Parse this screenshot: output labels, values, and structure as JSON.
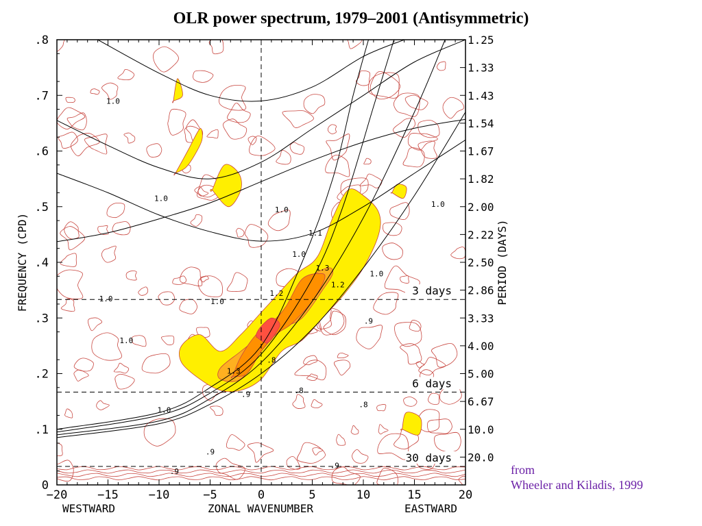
{
  "title": "OLR power spectrum, 1979–2001 (Antisymmetric)",
  "credit": {
    "line1": "from",
    "line2": "Wheeler and Kiladis, 1999"
  },
  "chart_data": {
    "type": "contour",
    "xlabel": "ZONAL WAVENUMBER",
    "xlabel_left": "WESTWARD",
    "xlabel_right": "EASTWARD",
    "ylabel": "FREQUENCY (CPD)",
    "ylabel_right": "PERIOD (DAYS)",
    "xlim": [
      -20,
      20
    ],
    "ylim": [
      0,
      0.8
    ],
    "x_ticks": [
      {
        "v": -20,
        "label": "−20"
      },
      {
        "v": -15,
        "label": "−15"
      },
      {
        "v": -10,
        "label": "−10"
      },
      {
        "v": -5,
        "label": "−5"
      },
      {
        "v": 0,
        "label": "0"
      },
      {
        "v": 5,
        "label": "5"
      },
      {
        "v": 10,
        "label": "10"
      },
      {
        "v": 15,
        "label": "15"
      },
      {
        "v": 20,
        "label": "20"
      }
    ],
    "y_ticks": [
      {
        "v": 0,
        "label": "0"
      },
      {
        "v": 0.1,
        "label": ".1"
      },
      {
        "v": 0.2,
        "label": ".2"
      },
      {
        "v": 0.3,
        "label": ".3"
      },
      {
        "v": 0.4,
        "label": ".4"
      },
      {
        "v": 0.5,
        "label": ".5"
      },
      {
        "v": 0.6,
        "label": ".6"
      },
      {
        "v": 0.7,
        "label": ".7"
      },
      {
        "v": 0.8,
        "label": ".8"
      }
    ],
    "period_ticks": [
      {
        "v": 0.8,
        "label": "1.25"
      },
      {
        "v": 0.75,
        "label": "1.33"
      },
      {
        "v": 0.7,
        "label": "1.43"
      },
      {
        "v": 0.65,
        "label": "1.54"
      },
      {
        "v": 0.6,
        "label": "1.67"
      },
      {
        "v": 0.55,
        "label": "1.82"
      },
      {
        "v": 0.5,
        "label": "2.00"
      },
      {
        "v": 0.45,
        "label": "2.22"
      },
      {
        "v": 0.4,
        "label": "2.50"
      },
      {
        "v": 0.35,
        "label": "2.86"
      },
      {
        "v": 0.3,
        "label": "3.33"
      },
      {
        "v": 0.25,
        "label": "4.00"
      },
      {
        "v": 0.2,
        "label": "5.00"
      },
      {
        "v": 0.15,
        "label": "6.67"
      },
      {
        "v": 0.1,
        "label": "10.0"
      },
      {
        "v": 0.05,
        "label": "20.0"
      }
    ],
    "reference_lines": [
      {
        "freq": 0.3333,
        "label": "3 days"
      },
      {
        "freq": 0.1667,
        "label": "6 days"
      },
      {
        "freq": 0.0333,
        "label": "30 days"
      }
    ],
    "dispersion_curves": {
      "kelvin_like": [
        {
          "x": [
            -20,
            -10,
            -5,
            0,
            5,
            10,
            15,
            20
          ],
          "y": [
            0.085,
            0.11,
            0.145,
            0.2,
            0.28,
            0.39,
            0.52,
            0.67
          ]
        },
        {
          "x": [
            -20,
            -10,
            -5,
            0,
            5,
            10,
            15,
            18
          ],
          "y": [
            0.09,
            0.115,
            0.155,
            0.22,
            0.33,
            0.48,
            0.67,
            0.8
          ]
        },
        {
          "x": [
            -20,
            -10,
            -5,
            0,
            5,
            8,
            11,
            13
          ],
          "y": [
            0.095,
            0.125,
            0.165,
            0.235,
            0.37,
            0.5,
            0.68,
            0.8
          ]
        },
        {
          "x": [
            -20,
            -10,
            -5,
            0,
            4,
            7,
            9,
            10.5
          ],
          "y": [
            0.1,
            0.13,
            0.175,
            0.25,
            0.4,
            0.55,
            0.7,
            0.8
          ]
        }
      ],
      "inertia_gravity": [
        {
          "x": [
            -20,
            -15,
            -10,
            -5,
            0,
            5,
            10,
            15,
            20
          ],
          "y": [
            0.437,
            0.453,
            0.478,
            0.507,
            0.545,
            0.583,
            0.616,
            0.641,
            0.657
          ]
        },
        {
          "x": [
            -20,
            -15,
            -10,
            -5,
            0,
            5,
            10,
            15,
            20
          ],
          "y": [
            0.56,
            0.525,
            0.485,
            0.455,
            0.438,
            0.452,
            0.5,
            0.56,
            0.62
          ]
        },
        {
          "x": [
            -20,
            -15,
            -10,
            -5,
            0,
            5,
            10,
            15,
            20
          ],
          "y": [
            0.655,
            0.61,
            0.57,
            0.55,
            0.58,
            0.64,
            0.7,
            0.76,
            0.8
          ]
        },
        {
          "x": [
            -16,
            -10,
            -5,
            0,
            5,
            10,
            14
          ],
          "y": [
            0.8,
            0.74,
            0.7,
            0.69,
            0.715,
            0.77,
            0.8
          ]
        }
      ]
    },
    "contour_labels": [
      {
        "x": -14.5,
        "y": 0.685,
        "text": "1.0"
      },
      {
        "x": -9.8,
        "y": 0.51,
        "text": "1.0"
      },
      {
        "x": 2.0,
        "y": 0.49,
        "text": "1.0"
      },
      {
        "x": -15.2,
        "y": 0.33,
        "text": "1.0"
      },
      {
        "x": -13.2,
        "y": 0.255,
        "text": "1.0"
      },
      {
        "x": -4.3,
        "y": 0.325,
        "text": "1.0"
      },
      {
        "x": 3.7,
        "y": 0.41,
        "text": "1.0"
      },
      {
        "x": 5.3,
        "y": 0.448,
        "text": "1.1"
      },
      {
        "x": 11.3,
        "y": 0.375,
        "text": "1.0"
      },
      {
        "x": 17.3,
        "y": 0.5,
        "text": "1.0"
      },
      {
        "x": 1.5,
        "y": 0.34,
        "text": "1.2"
      },
      {
        "x": 7.5,
        "y": 0.355,
        "text": "1.2"
      },
      {
        "x": 6.0,
        "y": 0.385,
        "text": "1.3"
      },
      {
        "x": -2.7,
        "y": 0.2,
        "text": "1.3"
      },
      {
        "x": -9.5,
        "y": 0.13,
        "text": "1.0"
      },
      {
        "x": 1.0,
        "y": 0.22,
        "text": ".8"
      },
      {
        "x": -1.5,
        "y": 0.158,
        "text": ".9"
      },
      {
        "x": 3.7,
        "y": 0.165,
        "text": ".8"
      },
      {
        "x": 10.5,
        "y": 0.29,
        "text": ".9"
      },
      {
        "x": 10.0,
        "y": 0.14,
        "text": ".8"
      },
      {
        "x": -5.0,
        "y": 0.055,
        "text": ".9"
      },
      {
        "x": 7.2,
        "y": 0.03,
        "text": ".9"
      },
      {
        "x": -8.5,
        "y": 0.02,
        "text": ".9"
      }
    ],
    "filled_regions": [
      {
        "level": "1.1",
        "color": "#ffef00",
        "x": [
          -7.8,
          -6,
          -4,
          -2,
          0,
          2,
          4,
          6,
          8,
          10,
          11.5,
          11.5,
          10,
          8.5,
          7,
          5.5,
          3.5,
          1.5,
          0,
          -2,
          -4,
          -6,
          -7.8
        ],
        "y": [
          0.22,
          0.19,
          0.17,
          0.17,
          0.19,
          0.24,
          0.26,
          0.3,
          0.34,
          0.39,
          0.45,
          0.49,
          0.52,
          0.53,
          0.48,
          0.41,
          0.38,
          0.34,
          0.31,
          0.27,
          0.24,
          0.27,
          0.25
        ]
      },
      {
        "level": "1.1",
        "color": "#ffef00",
        "x": [
          -8.4,
          -7.2,
          -6,
          -5.8,
          -6.6,
          -7.4,
          -8.4
        ],
        "y": [
          0.56,
          0.6,
          0.64,
          0.62,
          0.59,
          0.57,
          0.56
        ]
      },
      {
        "level": "1.1",
        "color": "#ffef00",
        "x": [
          -4.8,
          -3.2,
          -2.0,
          -2.2,
          -3.6,
          -4.8
        ],
        "y": [
          0.53,
          0.5,
          0.53,
          0.56,
          0.575,
          0.53
        ]
      },
      {
        "level": "1.1",
        "color": "#ffef00",
        "x": [
          -8.6,
          -7.7,
          -8.2,
          -8.6
        ],
        "y": [
          0.69,
          0.7,
          0.73,
          0.69
        ]
      },
      {
        "level": "1.1",
        "color": "#ffef00",
        "x": [
          12.8,
          13.9,
          14.2,
          13.3,
          12.8
        ],
        "y": [
          0.525,
          0.515,
          0.535,
          0.54,
          0.525
        ]
      },
      {
        "level": "1.1",
        "color": "#ffef00",
        "x": [
          13.8,
          15.4,
          15.6,
          14.2,
          13.8
        ],
        "y": [
          0.1,
          0.09,
          0.12,
          0.13,
          0.1
        ]
      },
      {
        "level": "1.2",
        "color": "#ffb020",
        "x": [
          -4,
          -2,
          0,
          2,
          4,
          6,
          7,
          6.5,
          4.5,
          3,
          1.5,
          0,
          -2,
          -4
        ],
        "y": [
          0.19,
          0.19,
          0.24,
          0.28,
          0.3,
          0.35,
          0.38,
          0.39,
          0.37,
          0.33,
          0.3,
          0.27,
          0.24,
          0.21
        ]
      },
      {
        "level": "1.3",
        "color": "#ff9000",
        "x": [
          -2.8,
          -1.4,
          0,
          1.4,
          3,
          5,
          6.2,
          5.8,
          4,
          2.4,
          1,
          -0.5,
          -2,
          -2.8
        ],
        "y": [
          0.195,
          0.2,
          0.24,
          0.27,
          0.29,
          0.33,
          0.37,
          0.38,
          0.37,
          0.32,
          0.29,
          0.27,
          0.23,
          0.195
        ]
      },
      {
        "level": "1.4",
        "color": "#ff5040",
        "x": [
          -0.4,
          0.6,
          1.5,
          1.8,
          1.0,
          0.0,
          -0.5,
          -0.4
        ],
        "y": [
          0.265,
          0.255,
          0.275,
          0.29,
          0.3,
          0.285,
          0.27,
          0.265
        ]
      }
    ]
  }
}
